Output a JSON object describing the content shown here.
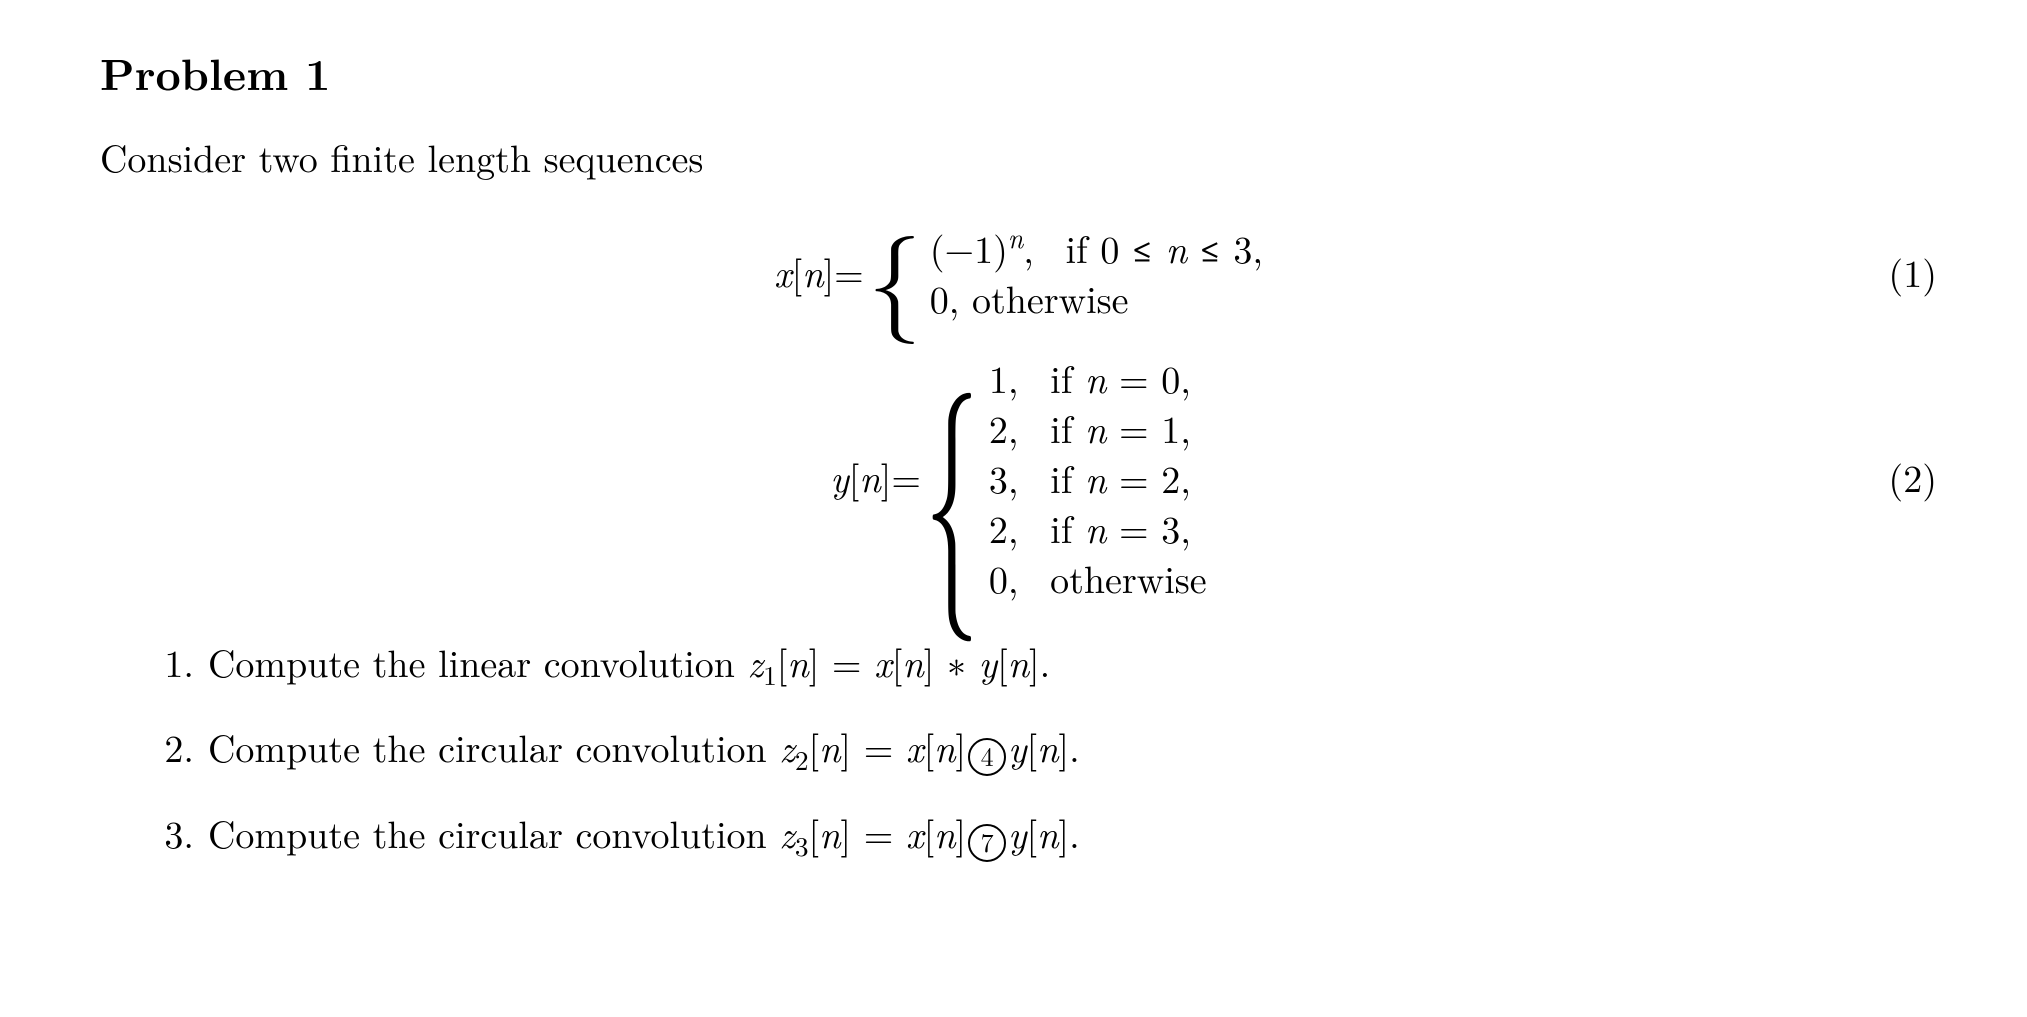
{
  "heading": "Problem 1",
  "intro": "Consider two finite length sequences",
  "eq1": {
    "lhs_var": "x",
    "lhs_arg": "n",
    "case1_a": "(−1)",
    "case1_b": ",  if 0 ≤ ",
    "case1_c": " ≤ 3,",
    "case2": "0, otherwise",
    "num": "(1)"
  },
  "eq2": {
    "lhs_var": "y",
    "lhs_arg": "n",
    "c1a": "1,  if ",
    "c1b": " = 0,",
    "c2a": "2,  if ",
    "c2b": " = 1,",
    "c3a": "3,  if ",
    "c3b": " = 2,",
    "c4a": "2,  if ",
    "c4b": " = 3,",
    "c5": "0,  otherwise",
    "num": "(2)"
  },
  "items": {
    "i1": {
      "num": "1.",
      "pre": "Compute the linear convolution ",
      "zsub": "1",
      "op": "∗",
      "post": "."
    },
    "i2": {
      "num": "2.",
      "pre": "Compute the circular convolution ",
      "zsub": "2",
      "op": "4",
      "post": "."
    },
    "i3": {
      "num": "3.",
      "pre": "Compute the circular convolution ",
      "zsub": "3",
      "op": "7",
      "post": "."
    }
  },
  "sym": {
    "n": "n",
    "x": "x",
    "y": "y",
    "z": "z",
    "eq": " = "
  }
}
